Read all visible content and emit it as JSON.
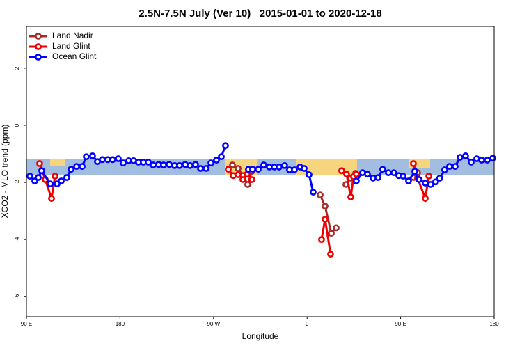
{
  "chart_data": {
    "type": "line",
    "title": "2.5N-7.5N July (Ver 10)   2015-01-01 to 2020-12-18",
    "x_label": "Longitude",
    "y_label": "XCO2 - MLO trend (ppm)",
    "xlim": [
      90,
      540
    ],
    "xticks": [
      {
        "value": 90,
        "label": "90 E"
      },
      180,
      {
        "value": 270,
        "label": "90 W"
      },
      {
        "value": 360,
        "label": "0"
      },
      {
        "value": 450,
        "label": "90 E"
      },
      {
        "value": 540,
        "label": "180"
      }
    ],
    "ylim": [
      -6.7,
      3.46
    ],
    "yticks": [
      2,
      0,
      -2,
      -4,
      -6
    ],
    "legend": "top-left",
    "series": [
      {
        "name": "Land Nadir",
        "color": "#a52a2a",
        "x": [
          288.2,
          293.6,
          298.2,
          302.9,
          306.9,
          340,
          372.6,
          377.3,
          383.3,
          388,
          392,
          397.4,
          402,
          406.7,
          430,
          462.3,
          466.3
        ],
        "values": [
          -1.39,
          -1.51,
          -1.76,
          -2.07,
          -1.61,
          null,
          -2.44,
          -2.83,
          -3.78,
          -3.59,
          null,
          -2.07,
          -1.85,
          -1.68,
          null,
          -1.83,
          -1.66
        ]
      },
      {
        "name": "Land Glint",
        "color": "#ee0000",
        "x": [
          102.7,
          108.1,
          114.1,
          117.5,
          200,
          284.2,
          288.9,
          293.6,
          298.2,
          302.3,
          306.9,
          340,
          373.9,
          377.3,
          382.6,
          388,
          393.3,
          398,
          402,
          404.7,
          407.4,
          430,
          462.3,
          466.3,
          473.7,
          477.1
        ],
        "values": [
          -1.34,
          -1.9,
          -2.56,
          -1.78,
          null,
          -1.54,
          -1.76,
          -1.73,
          -1.9,
          -1.71,
          -1.9,
          null,
          -4.0,
          -3.29,
          -4.51,
          null,
          -1.59,
          -1.71,
          -2.51,
          -1.8,
          -1.71,
          null,
          -1.34,
          -1.85,
          -2.56,
          -1.78
        ]
      },
      {
        "name": "Ocean Glint",
        "color": "#0000ff",
        "x": [
          93.3,
          98,
          101.4,
          104.7,
          112.8,
          119.5,
          123.5,
          128.8,
          132.9,
          138.2,
          143.6,
          147.6,
          153.6,
          158.3,
          163,
          168.3,
          173,
          178.4,
          183.1,
          188.4,
          193.1,
          197.8,
          202.5,
          207.2,
          211.9,
          217.2,
          221.9,
          227.3,
          232.6,
          237.3,
          242.7,
          247.4,
          252.7,
          257.4,
          262.8,
          267.5,
          272.8,
          277.5,
          281.5,
          292,
          303.6,
          307.6,
          313,
          318.3,
          323.7,
          328.4,
          333.1,
          338.4,
          343.1,
          347.8,
          353.2,
          357.2,
          361.9,
          365.9,
          390,
          407.4,
          413.4,
          418.1,
          423.5,
          428.2,
          432.8,
          438.2,
          443.5,
          448.2,
          452.3,
          457.6,
          463.6,
          467.7,
          473.7,
          479,
          483.7,
          487.7,
          492.4,
          497.1,
          502.5,
          507.2,
          512.5,
          517.9,
          523.2,
          527.9,
          533.3,
          538.6
        ],
        "values": [
          -1.78,
          -1.95,
          -1.83,
          -1.59,
          -2.05,
          -2.05,
          -1.95,
          -1.83,
          -1.54,
          -1.44,
          -1.44,
          -1.1,
          -1.07,
          -1.27,
          -1.2,
          -1.2,
          -1.2,
          -1.17,
          -1.32,
          -1.24,
          -1.24,
          -1.29,
          -1.29,
          -1.29,
          -1.39,
          -1.37,
          -1.39,
          -1.37,
          -1.41,
          -1.41,
          -1.37,
          -1.41,
          -1.37,
          -1.51,
          -1.51,
          -1.32,
          -1.22,
          -1.1,
          -0.71,
          null,
          -1.54,
          -1.54,
          -1.54,
          -1.39,
          -1.46,
          -1.46,
          -1.46,
          -1.41,
          -1.56,
          -1.56,
          -1.46,
          -1.51,
          -1.73,
          -2.34,
          null,
          -1.95,
          -1.66,
          -1.71,
          -1.85,
          -1.83,
          -1.54,
          -1.66,
          -1.66,
          -1.76,
          -1.78,
          -1.95,
          -1.61,
          -1.9,
          -2.02,
          -2.07,
          -1.98,
          -1.85,
          -1.56,
          -1.44,
          -1.44,
          -1.12,
          -1.07,
          -1.29,
          -1.17,
          -1.22,
          -1.22,
          -1.15
        ]
      }
    ]
  }
}
